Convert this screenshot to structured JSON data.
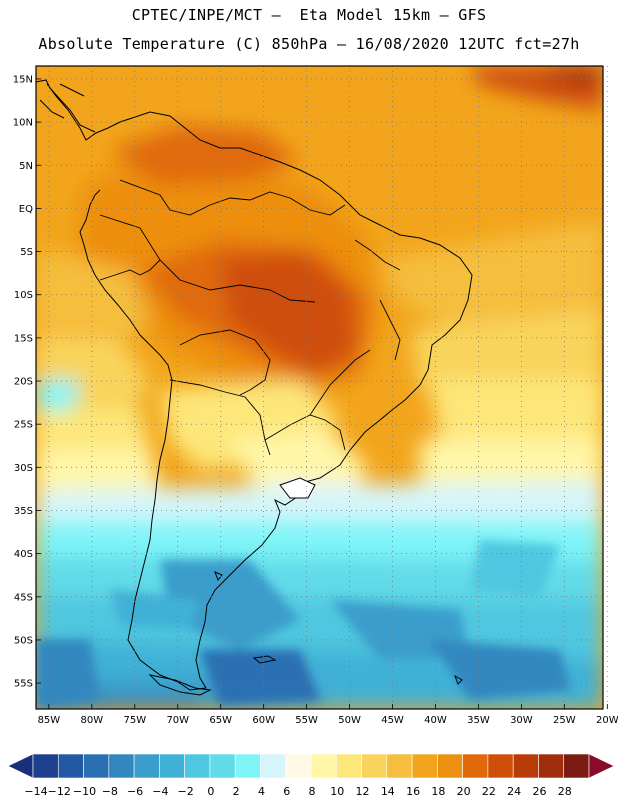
{
  "header": {
    "line1": "CPTEC/INPE/MCT –  Eta Model 15km – GFS",
    "line2": "Absolute Temperature (C) 850hPa – 16/08/2020 12UTC fct=27h"
  },
  "map": {
    "lat_labels": [
      "15N",
      "10N",
      "5N",
      "EQ",
      "5S",
      "10S",
      "15S",
      "20S",
      "25S",
      "30S",
      "35S",
      "40S",
      "45S",
      "50S",
      "55S"
    ],
    "lon_labels": [
      "85W",
      "80W",
      "75W",
      "70W",
      "65W",
      "60W",
      "55W",
      "50W",
      "45W",
      "40W",
      "35W",
      "30W",
      "25W",
      "20W"
    ],
    "lat_range": [
      -58,
      16.5
    ],
    "lon_range": [
      -86.5,
      -20.5
    ],
    "gridlines": "dotted"
  },
  "colorbar": {
    "labels": [
      "−14",
      "−12",
      "−10",
      "−8",
      "−6",
      "−4",
      "−2",
      "0",
      "2",
      "4",
      "6",
      "8",
      "10",
      "12",
      "14",
      "16",
      "18",
      "20",
      "22",
      "24",
      "26",
      "28"
    ],
    "colors": [
      "#1f3f8f",
      "#2358a5",
      "#2b6fb3",
      "#3387bf",
      "#3b9dcb",
      "#3fb1d6",
      "#4fc7e0",
      "#62dbe9",
      "#7ff5f8",
      "#d6f5fa",
      "#fff9e6",
      "#fff6a8",
      "#fde77a",
      "#f9d45c",
      "#f5be3e",
      "#f2a51c",
      "#ed8f10",
      "#e06a0a",
      "#cf4e08",
      "#b83c07",
      "#a02e0a",
      "#7b1a12"
    ],
    "under_color": "#1a2f7a",
    "over_color": "#8a0a2a"
  },
  "chart_data": {
    "type": "heatmap",
    "title": "Absolute Temperature (C) 850hPa – 16/08/2020 12UTC fct=27h",
    "variable": "Absolute Temperature",
    "units": "C",
    "level": "850hPa",
    "model": "Eta Model 15km – GFS",
    "run": "16/08/2020 12UTC",
    "forecast": "fct=27h",
    "x_range_deg": [
      -86.5,
      -20.5
    ],
    "y_range_deg": [
      -58,
      16.5
    ],
    "colorbar_levels": [
      -14,
      -12,
      -10,
      -8,
      -6,
      -4,
      -2,
      0,
      2,
      4,
      6,
      8,
      10,
      12,
      14,
      16,
      18,
      20,
      22,
      24,
      26,
      28
    ],
    "approx_regions": [
      {
        "region": "Central Brazil / interior",
        "temp_c": "20-24"
      },
      {
        "region": "Northern South America",
        "temp_c": "18-22"
      },
      {
        "region": "Equatorial Atlantic NE corner",
        "temp_c": "24-28"
      },
      {
        "region": "Uruguay / Rio de la Plata",
        "temp_c": "6-10"
      },
      {
        "region": "Patagonia / Southern Ocean",
        "temp_c": "-8 to 2"
      },
      {
        "region": "Southwest corner (south Pacific)",
        "temp_c": "-12 to -8"
      }
    ]
  }
}
